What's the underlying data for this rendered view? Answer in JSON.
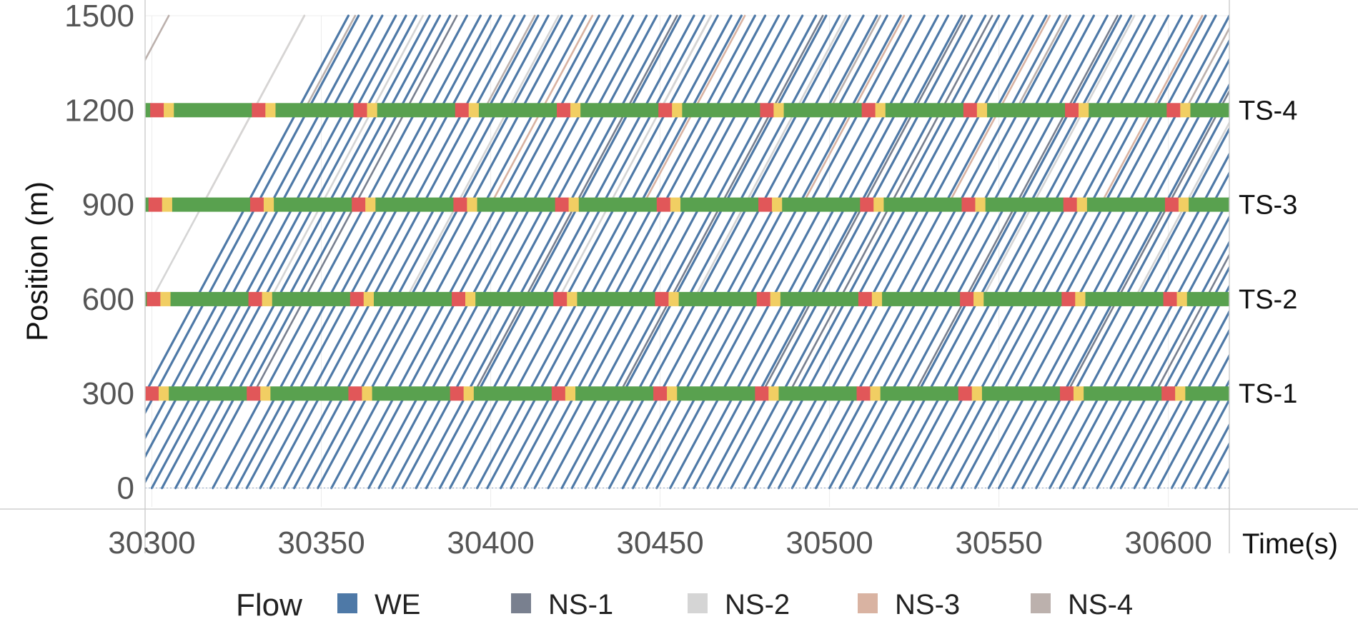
{
  "chart_data": {
    "type": "line",
    "title": "",
    "xlabel": "Time(s)",
    "ylabel": "Position (m)",
    "xlim": [
      30298,
      30618
    ],
    "ylim": [
      -60,
      1500
    ],
    "xticks": [
      30300,
      30350,
      30400,
      30450,
      30500,
      30550,
      30600
    ],
    "xtick_labels": [
      "30300",
      "30350",
      "30400",
      "30450",
      "30500",
      "30550",
      "30600"
    ],
    "yticks": [
      0,
      300,
      600,
      900,
      1200,
      1500
    ],
    "ytick_labels": [
      "0",
      "300",
      "600",
      "900",
      "1200",
      "1500"
    ],
    "grid": true,
    "legend_title": "Flow",
    "legend_position": "bottom",
    "series": [
      {
        "name": "WE",
        "color": "#4e79a7"
      },
      {
        "name": "NS-1",
        "color": "#79808f"
      },
      {
        "name": "NS-2",
        "color": "#d5d5d5"
      },
      {
        "name": "NS-3",
        "color": "#d9b3a2"
      },
      {
        "name": "NS-4",
        "color": "#bcb1ad"
      }
    ],
    "signals": [
      {
        "label": "TS-1",
        "position": 300
      },
      {
        "label": "TS-2",
        "position": 600
      },
      {
        "label": "TS-3",
        "position": 900
      },
      {
        "label": "TS-4",
        "position": 1200
      }
    ],
    "signal_cycle_s": 30,
    "signal_phase_colors": {
      "green": "#59a14f",
      "yellow": "#f1ce63",
      "red": "#e15759"
    },
    "vehicle_speed_mps": 20,
    "vehicle_entry_times": {
      "WE": [
        30283,
        30286,
        30290,
        30293,
        30297,
        30300,
        30303,
        30307,
        30310,
        30313,
        30318,
        30322,
        30325,
        30328,
        30332,
        30335,
        30339,
        30342,
        30346,
        30349,
        30353,
        30357,
        30360,
        30364,
        30367,
        30371,
        30374,
        30378,
        30381,
        30385,
        30388,
        30392,
        30396,
        30399,
        30403,
        30406,
        30410,
        30413,
        30417,
        30421,
        30424,
        30428,
        30431,
        30435,
        30439,
        30442,
        30446,
        30449,
        30453,
        30457,
        30460,
        30464,
        30467,
        30471,
        30475,
        30478,
        30482,
        30485,
        30489,
        30493,
        30496,
        30500,
        30503,
        30507,
        30511,
        30514,
        30518,
        30521,
        30525,
        30529,
        30532,
        30536,
        30539,
        30543,
        30547,
        30550,
        30554,
        30557,
        30561,
        30565,
        30568,
        30572,
        30575,
        30579,
        30583,
        30586,
        30590,
        30593,
        30597,
        30601,
        30604,
        30608,
        30611,
        30615
      ],
      "NS-1": [
        30330,
        30395,
        30438,
        30480,
        30488,
        30525,
        30570,
        30596
      ],
      "NS-2": [
        30300,
        30335,
        30375,
        30420,
        30460,
        30505,
        30545,
        30590
      ],
      "NS-3": [
        30315,
        30355,
        30400,
        30445,
        30492,
        30535,
        30580
      ],
      "NS-4": [
        30290,
        30345,
        30398,
        30450,
        30500,
        30555,
        30605
      ]
    },
    "ns_entry_positions": {
      "NS-1": 300,
      "NS-2": 600,
      "NS-3": 900,
      "NS-4": 1200
    }
  }
}
